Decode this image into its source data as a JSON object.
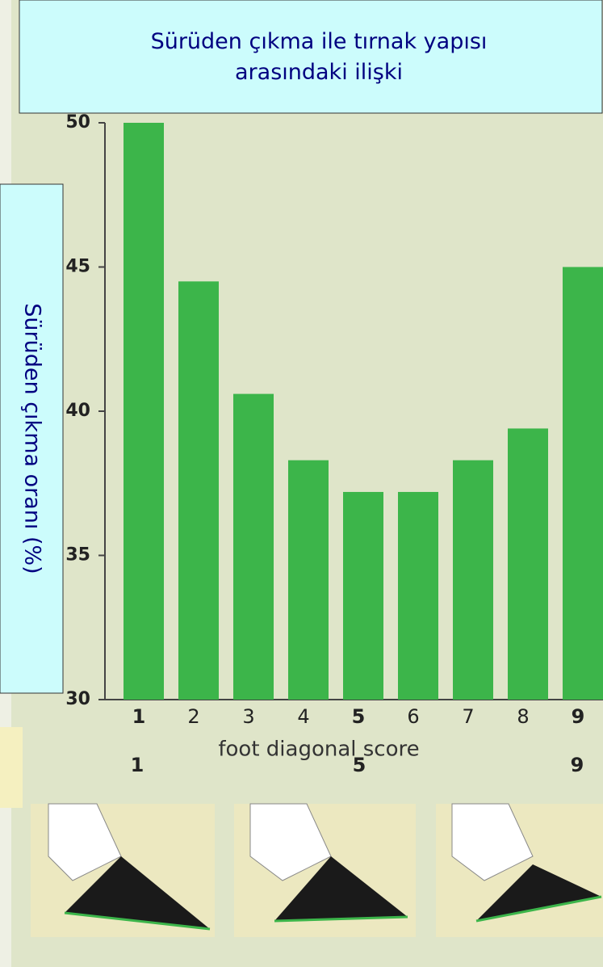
{
  "chart_data": {
    "type": "bar",
    "title": "Sürüden çıkma ile tırnak yapısı arasındaki ilişki",
    "y_label": "Sürüden çıkma oranı (%)",
    "x_label": "foot diagonal score",
    "categories": [
      "1",
      "2",
      "3",
      "4",
      "5",
      "6",
      "7",
      "8",
      "9"
    ],
    "values": [
      50,
      44.5,
      40.6,
      38.3,
      37.2,
      37.2,
      38.3,
      39.4,
      45
    ],
    "color": "#3cb54a",
    "ylim": [
      30,
      50
    ],
    "yticks": [
      30,
      35,
      40,
      45,
      50
    ],
    "image_labels": [
      "1",
      "5",
      "9"
    ]
  }
}
